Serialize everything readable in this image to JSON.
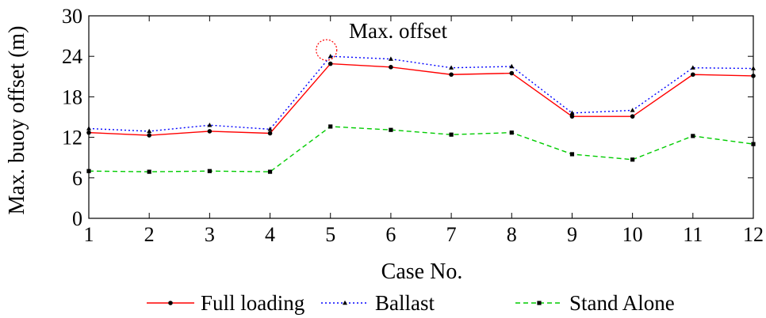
{
  "chart_data": {
    "type": "line",
    "xlabel": "Case No.",
    "ylabel": "Max. buoy offset (m)",
    "categories": [
      "1",
      "2",
      "3",
      "4",
      "5",
      "6",
      "7",
      "8",
      "9",
      "10",
      "11",
      "12"
    ],
    "yticks": [
      "0",
      "6",
      "12",
      "18",
      "24",
      "30"
    ],
    "ylim": [
      0,
      30
    ],
    "grid": false,
    "legend_position": "bottom",
    "annotation": {
      "text": "Max. offset",
      "series": "Ballast",
      "category": "5"
    },
    "series": [
      {
        "name": "Full loading",
        "color": "#ff0000",
        "line_style": "solid",
        "marker": "circle",
        "values": [
          12.7,
          12.3,
          12.9,
          12.6,
          22.9,
          22.4,
          21.3,
          21.5,
          15.1,
          15.1,
          21.3,
          21.1
        ]
      },
      {
        "name": "Ballast",
        "color": "#0000ff",
        "line_style": "dotted",
        "marker": "triangle",
        "values": [
          13.3,
          12.9,
          13.8,
          13.2,
          24.0,
          23.6,
          22.3,
          22.5,
          15.6,
          16.0,
          22.3,
          22.2
        ]
      },
      {
        "name": "Stand Alone",
        "color": "#00cc00",
        "line_style": "dashed",
        "marker": "square",
        "values": [
          7.0,
          6.9,
          7.0,
          6.9,
          13.6,
          13.1,
          12.4,
          12.7,
          9.5,
          8.7,
          12.2,
          11.0
        ]
      }
    ]
  }
}
